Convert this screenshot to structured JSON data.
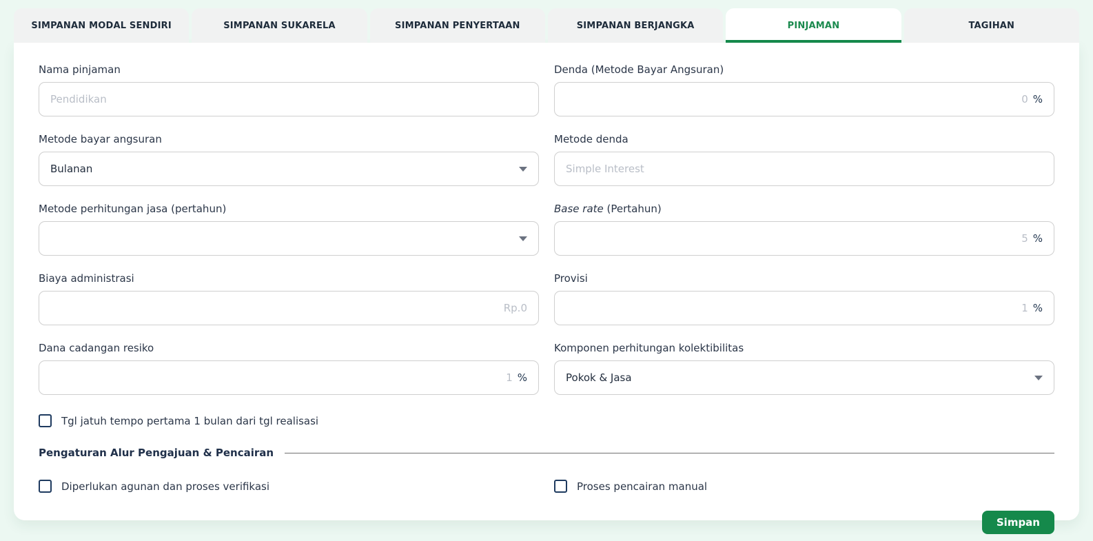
{
  "colors": {
    "page_background": "#ECF8F2",
    "accent_green": "#15894B",
    "active_tab_text": "#1B8A4E",
    "label_text": "#2B3648",
    "placeholder_text": "#B9BEC7"
  },
  "tabs": [
    {
      "label": "SIMPANAN MODAL SENDIRI",
      "active": false
    },
    {
      "label": "SIMPANAN SUKARELA",
      "active": false
    },
    {
      "label": "SIMPANAN PENYERTAAN",
      "active": false
    },
    {
      "label": "SIMPANAN BERJANGKA",
      "active": false
    },
    {
      "label": "PINJAMAN",
      "active": true
    },
    {
      "label": "TAGIHAN",
      "active": false
    }
  ],
  "form": {
    "nama_pinjaman": {
      "label": "Nama pinjaman",
      "placeholder": "Pendidikan",
      "value": ""
    },
    "denda": {
      "label": "Denda (Metode Bayar Angsuran)",
      "value": "0",
      "suffix": "%"
    },
    "metode_bayar_angsuran": {
      "label": "Metode bayar angsuran",
      "value": "Bulanan"
    },
    "metode_denda": {
      "label": "Metode denda",
      "placeholder": "Simple Interest",
      "value": ""
    },
    "metode_perhitungan_jasa": {
      "label": "Metode perhitungan jasa (pertahun)",
      "value": ""
    },
    "base_rate": {
      "label_italic": "Base rate",
      "label_rest": " (Pertahun)",
      "value": "5",
      "suffix": "%"
    },
    "biaya_administrasi": {
      "label": "Biaya administrasi",
      "placeholder": "Rp.0",
      "value": ""
    },
    "provisi": {
      "label": "Provisi",
      "value": "1",
      "suffix": "%"
    },
    "dana_cadangan_resiko": {
      "label": "Dana cadangan resiko",
      "value": "1",
      "suffix": "%"
    },
    "komponen_kolektibilitas": {
      "label": "Komponen perhitungan kolektibilitas",
      "value": "Pokok & Jasa"
    }
  },
  "checkboxes": {
    "tgl_jatuh_tempo": {
      "label": "Tgl jatuh tempo pertama 1 bulan dari tgl realisasi",
      "checked": false
    },
    "agunan_verifikasi": {
      "label": "Diperlukan agunan dan proses verifikasi",
      "checked": false
    },
    "pencairan_manual": {
      "label": "Proses pencairan manual",
      "checked": false
    }
  },
  "section": {
    "title": "Pengaturan Alur Pengajuan & Pencairan"
  },
  "actions": {
    "save_label": "Simpan"
  }
}
